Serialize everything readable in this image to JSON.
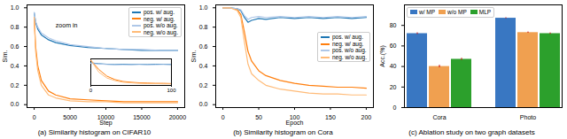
{
  "chart_data": [
    {
      "type": "line",
      "title": "(a) Similarity histogram on CIFAR10",
      "x_label": "Step",
      "y_label": "Sim.",
      "x": [
        0,
        200,
        500,
        1000,
        2000,
        3000,
        5000,
        7500,
        10000,
        12500,
        15000,
        17500,
        20000
      ],
      "series": [
        {
          "name": "pos. w/ aug.",
          "color": "#1f77b4",
          "line_style": "solid",
          "values": [
            0.95,
            0.85,
            0.78,
            0.72,
            0.67,
            0.64,
            0.61,
            0.59,
            0.58,
            0.57,
            0.56,
            0.56,
            0.56
          ]
        },
        {
          "name": "neg. w/ aug.",
          "color": "#ff7f0e",
          "line_style": "solid",
          "values": [
            0.9,
            0.6,
            0.4,
            0.25,
            0.14,
            0.1,
            0.06,
            0.05,
            0.04,
            0.03,
            0.03,
            0.03,
            0.03
          ]
        },
        {
          "name": "pos. w/o aug.",
          "color": "#aec7e8",
          "line_style": "solid",
          "values": [
            0.95,
            0.86,
            0.8,
            0.74,
            0.69,
            0.66,
            0.62,
            0.6,
            0.58,
            0.57,
            0.57,
            0.56,
            0.56
          ]
        },
        {
          "name": "neg. w/o aug.",
          "color": "#ffbb78",
          "line_style": "solid",
          "values": [
            0.9,
            0.55,
            0.35,
            0.2,
            0.1,
            0.07,
            0.04,
            0.03,
            0.03,
            0.02,
            0.02,
            0.02,
            0.02
          ]
        }
      ],
      "xlim": [
        -1000,
        21000
      ],
      "xticks": [
        0,
        5000,
        10000,
        15000,
        20000
      ],
      "ylim": [
        -0.03,
        1.03
      ],
      "yticks": [
        {
          "value": 0,
          "label": "0.0"
        },
        {
          "value": 0.2,
          "label": "0.2"
        },
        {
          "value": 0.4,
          "label": "0.4"
        },
        {
          "value": 0.6,
          "label": "0.6"
        },
        {
          "value": 0.8,
          "label": "0.8"
        },
        {
          "value": 1,
          "label": "1.0"
        }
      ],
      "legend": "upper right",
      "annotations": [
        {
          "text": "zoom in",
          "x": 3000,
          "y": 0.82
        }
      ]
    },
    {
      "type": "line",
      "x": [
        0,
        10,
        20,
        30,
        40,
        50,
        60,
        70,
        80,
        90,
        100
      ],
      "series": [
        {
          "color": "#1f77b4",
          "values": [
            0.85,
            0.82,
            0.8,
            0.79,
            0.8,
            0.79,
            0.8,
            0.79,
            0.8,
            0.8,
            0.79
          ]
        },
        {
          "color": "#ff7f0e",
          "values": [
            0.95,
            0.6,
            0.35,
            0.22,
            0.15,
            0.12,
            0.1,
            0.09,
            0.08,
            0.08,
            0.07
          ]
        },
        {
          "color": "#aec7e8",
          "values": [
            0.83,
            0.81,
            0.79,
            0.78,
            0.78,
            0.78,
            0.79,
            0.78,
            0.78,
            0.79,
            0.78
          ]
        },
        {
          "color": "#ffbb78",
          "values": [
            0.95,
            0.5,
            0.28,
            0.18,
            0.12,
            0.1,
            0.08,
            0.07,
            0.07,
            0.06,
            0.06
          ]
        }
      ],
      "xlim": [
        0,
        100
      ],
      "xticks": [
        0,
        100
      ],
      "ylim": [
        0,
        1
      ],
      "tick_labels": "x"
    },
    {
      "type": "line",
      "title": "(b) Similarity histogram on Cora",
      "x_label": "Epoch",
      "y_label": "Sim.",
      "x": [
        0,
        10,
        20,
        25,
        30,
        35,
        40,
        50,
        60,
        80,
        100,
        120,
        140,
        160,
        180,
        200
      ],
      "series": [
        {
          "name": "pos. w/ aug.",
          "color": "#1f77b4",
          "line_style": "solid",
          "values": [
            1,
            1,
            0.99,
            0.97,
            0.9,
            0.85,
            0.87,
            0.89,
            0.88,
            0.9,
            0.89,
            0.9,
            0.89,
            0.9,
            0.89,
            0.9
          ]
        },
        {
          "name": "neg. w/ aug.",
          "color": "#ff7f0e",
          "line_style": "solid",
          "values": [
            1,
            1,
            0.98,
            0.93,
            0.75,
            0.55,
            0.45,
            0.35,
            0.3,
            0.25,
            0.22,
            0.2,
            0.19,
            0.18,
            0.18,
            0.17
          ]
        },
        {
          "name": "pos. w/o aug.",
          "color": "#aec7e8",
          "line_style": "solid",
          "values": [
            1,
            1,
            0.99,
            0.98,
            0.92,
            0.88,
            0.9,
            0.91,
            0.9,
            0.91,
            0.9,
            0.91,
            0.9,
            0.91,
            0.9,
            0.91
          ]
        },
        {
          "name": "neg. w/o aug.",
          "color": "#ffbb78",
          "line_style": "solid",
          "values": [
            1,
            1,
            0.97,
            0.9,
            0.65,
            0.42,
            0.32,
            0.25,
            0.2,
            0.16,
            0.14,
            0.12,
            0.11,
            0.11,
            0.1,
            0.1
          ]
        }
      ],
      "xlim": [
        -10,
        210
      ],
      "xticks": [
        0,
        50,
        100,
        150,
        200
      ],
      "ylim": [
        -0.03,
        1.03
      ],
      "yticks": [
        {
          "value": 0,
          "label": "0.0"
        },
        {
          "value": 0.2,
          "label": "0.2"
        },
        {
          "value": 0.4,
          "label": "0.4"
        },
        {
          "value": 0.6,
          "label": "0.6"
        },
        {
          "value": 0.8,
          "label": "0.8"
        },
        {
          "value": 1,
          "label": "1.0"
        }
      ],
      "legend": "center right"
    },
    {
      "type": "bar",
      "title": "(c) Ablation study on two graph datasets",
      "y_label": "Acc.(%)",
      "categories": [
        "Cora",
        "Photo"
      ],
      "series": [
        {
          "name": "w/ MP",
          "color": "#3977c2",
          "values": [
            72,
            87
          ],
          "errors": [
            0.8,
            0.5
          ]
        },
        {
          "name": "w/o MP",
          "color": "#f0a050",
          "values": [
            40,
            73
          ],
          "errors": [
            1.2,
            0.6
          ]
        },
        {
          "name": "MLP",
          "color": "#2ca02c",
          "values": [
            47,
            72
          ],
          "errors": [
            1.0,
            0.7
          ]
        }
      ],
      "ylim": [
        0,
        100
      ],
      "yticks": [
        0,
        20,
        40,
        60,
        80
      ],
      "legend": "upper left"
    }
  ]
}
